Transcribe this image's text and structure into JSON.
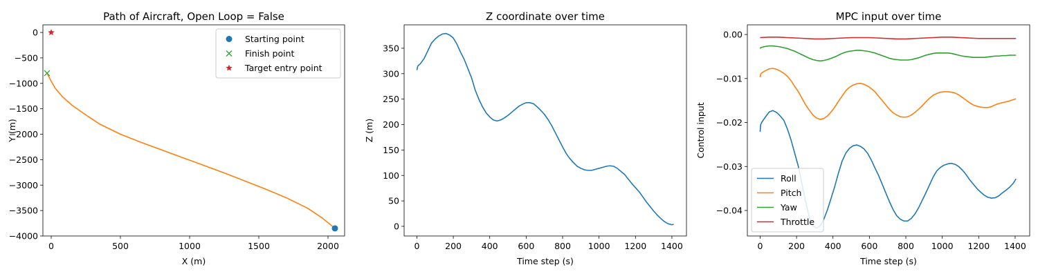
{
  "chart_data": [
    {
      "type": "line",
      "title": "Path of Aircraft, Open Loop = False",
      "xlabel": "X (m)",
      "ylabel": "Y (m)",
      "xlim": [
        -60,
        2120
      ],
      "ylim": [
        -4000,
        150
      ],
      "xticks": [
        0,
        500,
        1000,
        1500,
        2000
      ],
      "xticklabels": [
        "0",
        "500",
        "1000",
        "1500",
        "2000"
      ],
      "yticks": [
        0,
        -500,
        -1000,
        -1500,
        -2000,
        -2500,
        -3000,
        -3500,
        -4000
      ],
      "yticklabels": [
        "0",
        "−500",
        "−1000",
        "−1500",
        "−2000",
        "−2500",
        "−3000",
        "−3500",
        "−4000"
      ],
      "grid": false,
      "legend": "top-right",
      "series": [
        {
          "color": "#ff7f0e",
          "x": [
            2050,
            1960,
            1850,
            1700,
            1550,
            1400,
            1250,
            1100,
            950,
            800,
            650,
            500,
            350,
            250,
            150,
            80,
            30,
            0,
            -30
          ],
          "y": [
            -3850,
            -3650,
            -3450,
            -3250,
            -3080,
            -2920,
            -2760,
            -2610,
            -2460,
            -2310,
            -2160,
            -2000,
            -1800,
            -1620,
            -1430,
            -1260,
            -1100,
            -960,
            -800
          ]
        },
        {
          "name": "Starting point",
          "marker": "circle",
          "color": "#1f77b4",
          "x": [
            2050
          ],
          "y": [
            -3850
          ]
        },
        {
          "name": "Finish point",
          "marker": "x",
          "color": "#2ca02c",
          "x": [
            -30
          ],
          "y": [
            -800
          ]
        },
        {
          "name": "Target entry point",
          "marker": "star",
          "color": "#d62728",
          "x": [
            0
          ],
          "y": [
            0
          ]
        }
      ]
    },
    {
      "type": "line",
      "title": "Z coordinate over time",
      "xlabel": "Time step (s)",
      "ylabel": "Z (m)",
      "xlim": [
        -70,
        1480
      ],
      "ylim": [
        -19,
        396
      ],
      "xticks": [
        0,
        200,
        400,
        600,
        800,
        1000,
        1200,
        1400
      ],
      "xticklabels": [
        "0",
        "200",
        "400",
        "600",
        "800",
        "1000",
        "1200",
        "1400"
      ],
      "yticks": [
        0,
        50,
        100,
        150,
        200,
        250,
        300,
        350
      ],
      "yticklabels": [
        "0",
        "50",
        "100",
        "150",
        "200",
        "250",
        "300",
        "350"
      ],
      "grid": false,
      "series": [
        {
          "color": "#1f77b4",
          "x": [
            0,
            5,
            20,
            40,
            60,
            80,
            100,
            120,
            140,
            160,
            180,
            200,
            220,
            240,
            260,
            280,
            300,
            320,
            340,
            360,
            380,
            400,
            420,
            440,
            460,
            480,
            500,
            520,
            540,
            560,
            580,
            600,
            620,
            640,
            660,
            680,
            700,
            720,
            740,
            760,
            780,
            800,
            820,
            840,
            860,
            880,
            900,
            920,
            940,
            960,
            980,
            1000,
            1020,
            1040,
            1060,
            1080,
            1100,
            1120,
            1140,
            1160,
            1180,
            1200,
            1220,
            1240,
            1260,
            1280,
            1300,
            1320,
            1340,
            1360,
            1380,
            1400,
            1410
          ],
          "y": [
            307,
            315,
            320,
            330,
            345,
            360,
            368,
            374,
            378,
            379,
            376,
            370,
            358,
            342,
            328,
            310,
            292,
            268,
            250,
            235,
            223,
            215,
            209,
            207,
            209,
            213,
            218,
            224,
            230,
            236,
            240,
            243,
            243,
            241,
            235,
            228,
            220,
            210,
            198,
            184,
            170,
            156,
            143,
            133,
            125,
            118,
            114,
            111,
            110,
            110,
            112,
            114,
            116,
            118,
            119,
            118,
            114,
            108,
            102,
            93,
            84,
            76,
            68,
            58,
            48,
            39,
            30,
            22,
            15,
            9,
            5,
            3,
            4
          ]
        }
      ]
    },
    {
      "type": "line",
      "title": "MPC input over time",
      "xlabel": "Time step (s)",
      "ylabel": "Control input",
      "xlim": [
        -70,
        1480
      ],
      "ylim": [
        -0.0458,
        0.0022
      ],
      "xticks": [
        0,
        200,
        400,
        600,
        800,
        1000,
        1200,
        1400
      ],
      "xticklabels": [
        "0",
        "200",
        "400",
        "600",
        "800",
        "1000",
        "1200",
        "1400"
      ],
      "yticks": [
        0,
        -0.01,
        -0.02,
        -0.03,
        -0.04
      ],
      "yticklabels": [
        "0.00",
        "−0.01",
        "−0.02",
        "−0.03",
        "−0.04"
      ],
      "grid": false,
      "legend": "bottom-left",
      "series": [
        {
          "name": "Roll",
          "color": "#1f77b4",
          "x": [
            0,
            3,
            10,
            30,
            50,
            70,
            90,
            110,
            130,
            150,
            170,
            190,
            210,
            230,
            250,
            270,
            290,
            310,
            330,
            350,
            370,
            390,
            410,
            430,
            450,
            470,
            490,
            510,
            530,
            550,
            570,
            590,
            610,
            630,
            650,
            670,
            690,
            710,
            730,
            750,
            770,
            790,
            810,
            830,
            850,
            870,
            890,
            910,
            930,
            950,
            970,
            990,
            1010,
            1030,
            1050,
            1070,
            1090,
            1110,
            1130,
            1150,
            1170,
            1190,
            1210,
            1230,
            1250,
            1270,
            1290,
            1310,
            1330,
            1350,
            1370,
            1390,
            1405
          ],
          "y": [
            -0.0221,
            -0.0205,
            -0.0199,
            -0.0187,
            -0.0176,
            -0.0173,
            -0.0177,
            -0.0185,
            -0.0195,
            -0.0215,
            -0.024,
            -0.027,
            -0.03,
            -0.034,
            -0.038,
            -0.0415,
            -0.0435,
            -0.044,
            -0.0435,
            -0.042,
            -0.0398,
            -0.0372,
            -0.0345,
            -0.0315,
            -0.0288,
            -0.027,
            -0.0259,
            -0.0253,
            -0.0251,
            -0.0254,
            -0.026,
            -0.027,
            -0.0285,
            -0.0303,
            -0.032,
            -0.034,
            -0.036,
            -0.038,
            -0.0398,
            -0.0412,
            -0.042,
            -0.0424,
            -0.0424,
            -0.0418,
            -0.0408,
            -0.0394,
            -0.0377,
            -0.036,
            -0.0342,
            -0.0324,
            -0.031,
            -0.0302,
            -0.0297,
            -0.0294,
            -0.0293,
            -0.0295,
            -0.03,
            -0.0308,
            -0.0318,
            -0.033,
            -0.034,
            -0.035,
            -0.0358,
            -0.0365,
            -0.037,
            -0.0372,
            -0.0371,
            -0.0367,
            -0.036,
            -0.0354,
            -0.0347,
            -0.0338,
            -0.0328
          ]
        },
        {
          "name": "Pitch",
          "color": "#ff7f0e",
          "x": [
            0,
            3,
            10,
            30,
            50,
            70,
            90,
            110,
            130,
            150,
            170,
            190,
            210,
            230,
            250,
            270,
            290,
            310,
            330,
            350,
            370,
            390,
            410,
            430,
            450,
            470,
            490,
            510,
            530,
            550,
            570,
            590,
            610,
            630,
            650,
            670,
            690,
            710,
            730,
            750,
            770,
            790,
            810,
            830,
            850,
            870,
            890,
            910,
            930,
            950,
            970,
            990,
            1010,
            1030,
            1050,
            1070,
            1090,
            1110,
            1130,
            1150,
            1170,
            1190,
            1210,
            1230,
            1250,
            1270,
            1290,
            1310,
            1330,
            1350,
            1370,
            1390,
            1405
          ],
          "y": [
            -0.0097,
            -0.009,
            -0.0087,
            -0.0082,
            -0.0078,
            -0.0077,
            -0.0079,
            -0.0083,
            -0.0088,
            -0.0095,
            -0.0105,
            -0.0118,
            -0.013,
            -0.0145,
            -0.016,
            -0.0172,
            -0.0183,
            -0.019,
            -0.0193,
            -0.0191,
            -0.0185,
            -0.0176,
            -0.0165,
            -0.0152,
            -0.014,
            -0.0128,
            -0.012,
            -0.0115,
            -0.0112,
            -0.0111,
            -0.0113,
            -0.0117,
            -0.0123,
            -0.013,
            -0.014,
            -0.015,
            -0.016,
            -0.017,
            -0.0178,
            -0.0183,
            -0.0187,
            -0.0188,
            -0.0187,
            -0.0183,
            -0.0177,
            -0.017,
            -0.0162,
            -0.0153,
            -0.0145,
            -0.0138,
            -0.0134,
            -0.0131,
            -0.013,
            -0.013,
            -0.0131,
            -0.0133,
            -0.0137,
            -0.0143,
            -0.0149,
            -0.0155,
            -0.016,
            -0.0163,
            -0.0165,
            -0.0166,
            -0.0166,
            -0.0164,
            -0.016,
            -0.0157,
            -0.0155,
            -0.0153,
            -0.0151,
            -0.0148,
            -0.0146
          ]
        },
        {
          "name": "Yaw",
          "color": "#2ca02c",
          "x": [
            0,
            3,
            10,
            30,
            50,
            70,
            90,
            110,
            130,
            150,
            170,
            190,
            210,
            230,
            250,
            270,
            290,
            310,
            330,
            350,
            370,
            390,
            410,
            430,
            450,
            470,
            490,
            510,
            530,
            550,
            570,
            590,
            610,
            630,
            650,
            670,
            690,
            710,
            730,
            750,
            770,
            790,
            810,
            830,
            850,
            870,
            890,
            910,
            930,
            950,
            970,
            990,
            1010,
            1030,
            1050,
            1070,
            1090,
            1110,
            1130,
            1150,
            1170,
            1190,
            1210,
            1230,
            1250,
            1270,
            1290,
            1310,
            1330,
            1350,
            1370,
            1390,
            1405
          ],
          "y": [
            -0.0032,
            -0.003,
            -0.0029,
            -0.0027,
            -0.0026,
            -0.0026,
            -0.0027,
            -0.0028,
            -0.003,
            -0.0032,
            -0.0035,
            -0.0038,
            -0.0042,
            -0.0046,
            -0.005,
            -0.0054,
            -0.0057,
            -0.0059,
            -0.006,
            -0.0059,
            -0.0057,
            -0.0054,
            -0.0051,
            -0.0047,
            -0.0043,
            -0.004,
            -0.0038,
            -0.0037,
            -0.0036,
            -0.0036,
            -0.0037,
            -0.0038,
            -0.004,
            -0.0042,
            -0.0045,
            -0.0048,
            -0.0051,
            -0.0054,
            -0.0056,
            -0.0057,
            -0.0058,
            -0.0058,
            -0.0058,
            -0.0057,
            -0.0055,
            -0.0053,
            -0.005,
            -0.0047,
            -0.0045,
            -0.0043,
            -0.0042,
            -0.0042,
            -0.0042,
            -0.0042,
            -0.0043,
            -0.0045,
            -0.0047,
            -0.0049,
            -0.005,
            -0.0051,
            -0.0052,
            -0.0052,
            -0.0052,
            -0.0052,
            -0.0051,
            -0.005,
            -0.0049,
            -0.0049,
            -0.0048,
            -0.0048,
            -0.0047,
            -0.0047,
            -0.0047
          ]
        },
        {
          "name": "Throttle",
          "color": "#d62728",
          "x": [
            0,
            50,
            100,
            150,
            200,
            250,
            300,
            350,
            400,
            450,
            500,
            550,
            600,
            650,
            700,
            750,
            800,
            850,
            900,
            950,
            1000,
            1050,
            1100,
            1150,
            1200,
            1250,
            1300,
            1350,
            1405
          ],
          "y": [
            -0.0007,
            -0.0006,
            -0.0006,
            -0.0007,
            -0.0008,
            -0.0009,
            -0.001,
            -0.001,
            -0.0009,
            -0.0008,
            -0.0007,
            -0.0007,
            -0.0007,
            -0.0008,
            -0.0009,
            -0.001,
            -0.001,
            -0.0009,
            -0.0008,
            -0.0007,
            -0.0006,
            -0.0006,
            -0.0007,
            -0.0008,
            -0.0009,
            -0.0009,
            -0.0009,
            -0.0009,
            -0.0009
          ]
        }
      ]
    }
  ]
}
